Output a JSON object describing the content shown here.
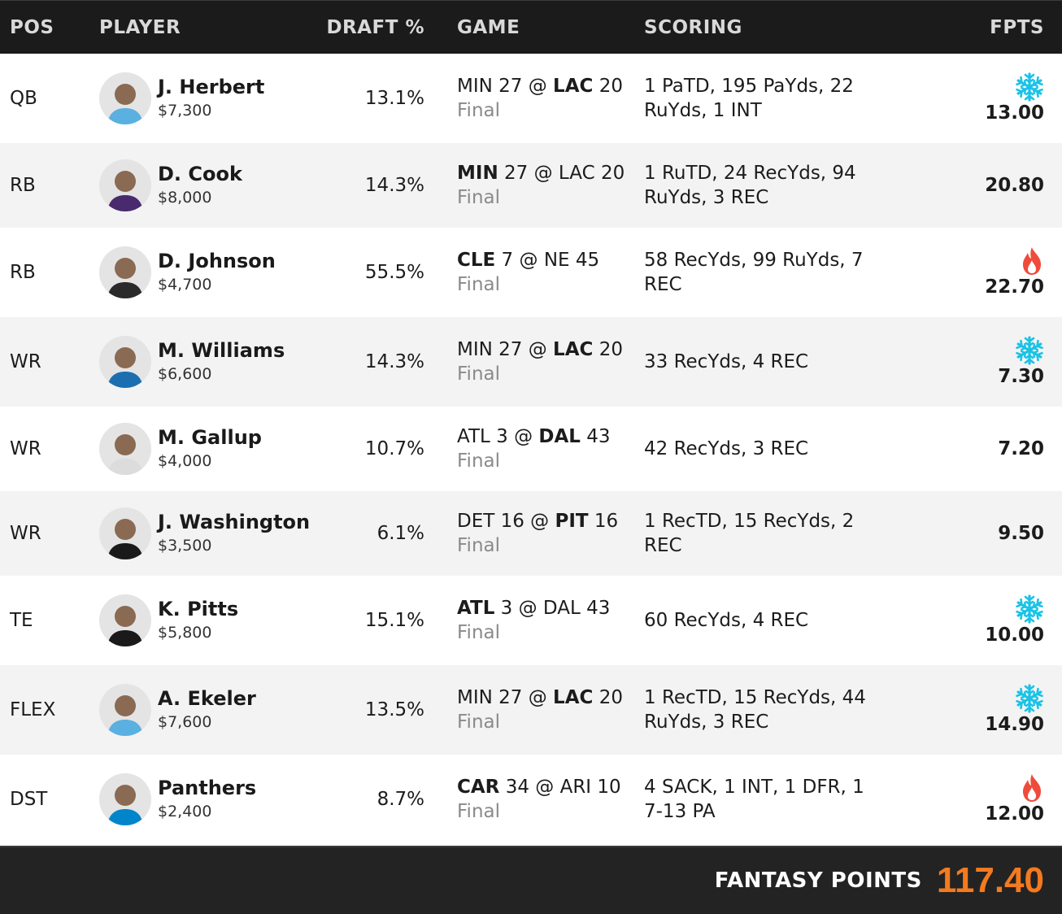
{
  "header": {
    "pos": "POS",
    "player": "PLAYER",
    "draft": "DRAFT %",
    "game": "GAME",
    "scoring": "SCORING",
    "fpts": "FPTS"
  },
  "rows": [
    {
      "pos": "QB",
      "name": "J. Herbert",
      "salary": "$7,300",
      "draft": "13.1%",
      "away": "MIN",
      "away_score": "27",
      "at": "@",
      "home": "LAC",
      "home_score": "20",
      "bold_team": "home",
      "status": "Final",
      "scoring": "1 PaTD, 195 PaYds, 22 RuYds, 1 INT",
      "fpts": "13.00",
      "icon": "snowflake-icon",
      "avatar_color": "#5ab0e0"
    },
    {
      "pos": "RB",
      "name": "D. Cook",
      "salary": "$8,000",
      "draft": "14.3%",
      "away": "MIN",
      "away_score": "27",
      "at": "@",
      "home": "LAC",
      "home_score": "20",
      "bold_team": "away",
      "status": "Final",
      "scoring": "1 RuTD, 24 RecYds, 94 RuYds, 3 REC",
      "fpts": "20.80",
      "icon": "",
      "avatar_color": "#4a2a6e"
    },
    {
      "pos": "RB",
      "name": "D. Johnson",
      "salary": "$4,700",
      "draft": "55.5%",
      "away": "CLE",
      "away_score": "7",
      "at": "@",
      "home": "NE",
      "home_score": "45",
      "bold_team": "away",
      "status": "Final",
      "scoring": "58 RecYds, 99 RuYds, 7 REC",
      "fpts": "22.70",
      "icon": "fire-icon",
      "avatar_color": "#2a2a2a"
    },
    {
      "pos": "WR",
      "name": "M. Williams",
      "salary": "$6,600",
      "draft": "14.3%",
      "away": "MIN",
      "away_score": "27",
      "at": "@",
      "home": "LAC",
      "home_score": "20",
      "bold_team": "home",
      "status": "Final",
      "scoring": "33 RecYds, 4 REC",
      "fpts": "7.30",
      "icon": "snowflake-icon",
      "avatar_color": "#1b6fb0"
    },
    {
      "pos": "WR",
      "name": "M. Gallup",
      "salary": "$4,000",
      "draft": "10.7%",
      "away": "ATL",
      "away_score": "3",
      "at": "@",
      "home": "DAL",
      "home_score": "43",
      "bold_team": "home",
      "status": "Final",
      "scoring": "42 RecYds, 3 REC",
      "fpts": "7.20",
      "icon": "",
      "avatar_color": "#dcdcdc"
    },
    {
      "pos": "WR",
      "name": "J. Washington",
      "salary": "$3,500",
      "draft": "6.1%",
      "away": "DET",
      "away_score": "16",
      "at": "@",
      "home": "PIT",
      "home_score": "16",
      "bold_team": "home",
      "status": "Final",
      "scoring": "1 RecTD, 15 RecYds, 2 REC",
      "fpts": "9.50",
      "icon": "",
      "avatar_color": "#1a1a1a"
    },
    {
      "pos": "TE",
      "name": "K. Pitts",
      "salary": "$5,800",
      "draft": "15.1%",
      "away": "ATL",
      "away_score": "3",
      "at": "@",
      "home": "DAL",
      "home_score": "43",
      "bold_team": "away",
      "status": "Final",
      "scoring": "60 RecYds, 4 REC",
      "fpts": "10.00",
      "icon": "snowflake-icon",
      "avatar_color": "#1a1a1a"
    },
    {
      "pos": "FLEX",
      "name": "A. Ekeler",
      "salary": "$7,600",
      "draft": "13.5%",
      "away": "MIN",
      "away_score": "27",
      "at": "@",
      "home": "LAC",
      "home_score": "20",
      "bold_team": "home",
      "status": "Final",
      "scoring": "1 RecTD, 15 RecYds, 44 RuYds, 3 REC",
      "fpts": "14.90",
      "icon": "snowflake-icon",
      "avatar_color": "#5ab0e0"
    },
    {
      "pos": "DST",
      "name": "Panthers",
      "salary": "$2,400",
      "draft": "8.7%",
      "away": "CAR",
      "away_score": "34",
      "at": "@",
      "home": "ARI",
      "home_score": "10",
      "bold_team": "away",
      "status": "Final",
      "scoring": "4 SACK, 1 INT, 1 DFR, 1 7-13 PA",
      "fpts": "12.00",
      "icon": "fire-icon",
      "avatar_color": "#0085ca"
    }
  ],
  "footer": {
    "label": "FANTASY POINTS",
    "total": "117.40"
  },
  "colors": {
    "accent_orange": "#f47a1f",
    "snowflake": "#19c3e6",
    "fire": "#f04b3a",
    "header_bg": "#1b1b1b"
  }
}
